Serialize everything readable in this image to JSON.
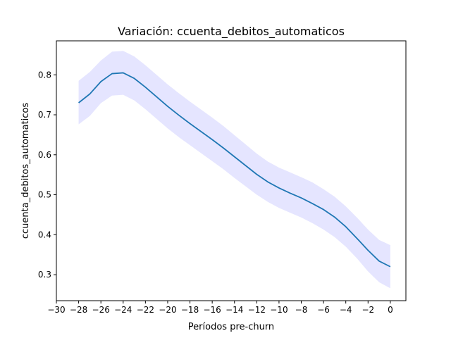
{
  "chart_data": {
    "type": "line",
    "title": "Variación: ccuenta_debitos_automaticos",
    "xlabel": "Períodos pre-churn",
    "ylabel": "ccuenta_debitos_automaticos",
    "xlim": [
      -30,
      1.4
    ],
    "ylim": [
      0.235,
      0.885
    ],
    "xticks": [
      -30,
      -28,
      -26,
      -24,
      -22,
      -20,
      -18,
      -16,
      -14,
      -12,
      -10,
      -8,
      -6,
      -4,
      -2,
      0
    ],
    "xtick_labels": [
      "−30",
      "−28",
      "−26",
      "−24",
      "−22",
      "−20",
      "−18",
      "−16",
      "−14",
      "−12",
      "−10",
      "−8",
      "−6",
      "−4",
      "−2",
      "0"
    ],
    "yticks": [
      0.3,
      0.4,
      0.5,
      0.6,
      0.7,
      0.8
    ],
    "ytick_labels": [
      "0.3",
      "0.4",
      "0.5",
      "0.6",
      "0.7",
      "0.8"
    ],
    "grid": false,
    "x": [
      -28,
      -27,
      -26,
      -25,
      -24,
      -23,
      -22,
      -21,
      -20,
      -19,
      -18,
      -17,
      -16,
      -15,
      -14,
      -13,
      -12,
      -11,
      -10,
      -9,
      -8,
      -7,
      -6,
      -5,
      -4,
      -3,
      -2,
      -1,
      0
    ],
    "series": [
      {
        "values": [
          0.73,
          0.752,
          0.783,
          0.803,
          0.805,
          0.791,
          0.769,
          0.745,
          0.721,
          0.699,
          0.678,
          0.658,
          0.638,
          0.617,
          0.595,
          0.573,
          0.551,
          0.532,
          0.517,
          0.504,
          0.492,
          0.478,
          0.463,
          0.444,
          0.42,
          0.391,
          0.361,
          0.334,
          0.32
        ],
        "lower": [
          0.676,
          0.697,
          0.729,
          0.748,
          0.75,
          0.736,
          0.714,
          0.69,
          0.666,
          0.644,
          0.624,
          0.604,
          0.584,
          0.564,
          0.542,
          0.521,
          0.5,
          0.482,
          0.467,
          0.455,
          0.443,
          0.429,
          0.413,
          0.394,
          0.37,
          0.341,
          0.308,
          0.281,
          0.266
        ],
        "upper": [
          0.785,
          0.807,
          0.836,
          0.858,
          0.86,
          0.846,
          0.824,
          0.8,
          0.776,
          0.754,
          0.733,
          0.713,
          0.693,
          0.672,
          0.649,
          0.626,
          0.603,
          0.583,
          0.568,
          0.556,
          0.544,
          0.531,
          0.514,
          0.495,
          0.471,
          0.443,
          0.413,
          0.387,
          0.374
        ]
      }
    ],
    "colors": {
      "line": "#1f77b4",
      "band": "#0000ff"
    }
  }
}
